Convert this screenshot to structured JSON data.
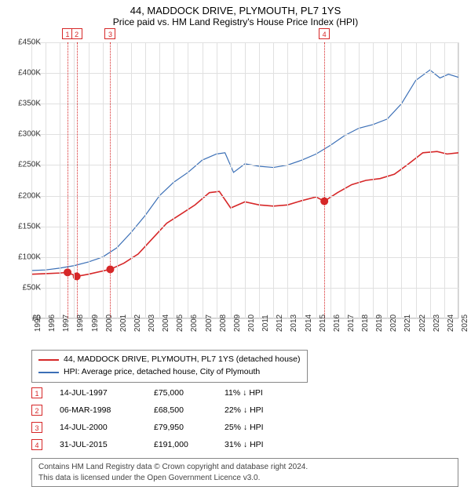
{
  "title": "44, MADDOCK DRIVE, PLYMOUTH, PL7 1YS",
  "subtitle": "Price paid vs. HM Land Registry's House Price Index (HPI)",
  "chart": {
    "type": "line",
    "background_color": "#ffffff",
    "border_color": "#cccccc",
    "grid_color": "#e0e0e0",
    "axis_font_size": 10,
    "y": {
      "min": 0,
      "max": 450000,
      "tick_step": 50000,
      "prefix": "£",
      "tick_labels": [
        "£0",
        "£50K",
        "£100K",
        "£150K",
        "£200K",
        "£250K",
        "£300K",
        "£350K",
        "£400K",
        "£450K"
      ]
    },
    "x": {
      "min": 1995,
      "max": 2025,
      "tick_step": 1,
      "labels": [
        "1995",
        "1996",
        "1997",
        "1998",
        "1999",
        "2000",
        "2001",
        "2002",
        "2003",
        "2004",
        "2005",
        "2006",
        "2007",
        "2008",
        "2009",
        "2010",
        "2011",
        "2012",
        "2013",
        "2014",
        "2015",
        "2016",
        "2017",
        "2018",
        "2019",
        "2020",
        "2021",
        "2022",
        "2023",
        "2024",
        "2025"
      ]
    },
    "series": [
      {
        "id": "sale_price",
        "label": "44, MADDOCK DRIVE, PLYMOUTH, PL7 1YS (detached house)",
        "color": "#d62728",
        "line_width": 1.6,
        "marker_size": 5,
        "marker_points": [
          {
            "x": 1997.54,
            "y": 75000
          },
          {
            "x": 1998.18,
            "y": 68500
          },
          {
            "x": 2000.54,
            "y": 79950
          },
          {
            "x": 2015.58,
            "y": 191000
          }
        ],
        "points": [
          {
            "x": 1995.0,
            "y": 72000
          },
          {
            "x": 1996.0,
            "y": 73000
          },
          {
            "x": 1997.0,
            "y": 74000
          },
          {
            "x": 1997.54,
            "y": 75000
          },
          {
            "x": 1998.18,
            "y": 68500
          },
          {
            "x": 1999.0,
            "y": 72000
          },
          {
            "x": 2000.54,
            "y": 79950
          },
          {
            "x": 2001.5,
            "y": 90000
          },
          {
            "x": 2002.5,
            "y": 105000
          },
          {
            "x": 2003.5,
            "y": 130000
          },
          {
            "x": 2004.5,
            "y": 155000
          },
          {
            "x": 2005.5,
            "y": 170000
          },
          {
            "x": 2006.5,
            "y": 185000
          },
          {
            "x": 2007.5,
            "y": 205000
          },
          {
            "x": 2008.2,
            "y": 207000
          },
          {
            "x": 2009.0,
            "y": 180000
          },
          {
            "x": 2010.0,
            "y": 190000
          },
          {
            "x": 2011.0,
            "y": 185000
          },
          {
            "x": 2012.0,
            "y": 183000
          },
          {
            "x": 2013.0,
            "y": 185000
          },
          {
            "x": 2014.0,
            "y": 192000
          },
          {
            "x": 2015.0,
            "y": 198000
          },
          {
            "x": 2015.58,
            "y": 191000
          },
          {
            "x": 2016.5,
            "y": 205000
          },
          {
            "x": 2017.5,
            "y": 218000
          },
          {
            "x": 2018.5,
            "y": 225000
          },
          {
            "x": 2019.5,
            "y": 228000
          },
          {
            "x": 2020.5,
            "y": 235000
          },
          {
            "x": 2021.5,
            "y": 252000
          },
          {
            "x": 2022.5,
            "y": 270000
          },
          {
            "x": 2023.5,
            "y": 272000
          },
          {
            "x": 2024.2,
            "y": 268000
          },
          {
            "x": 2025.0,
            "y": 270000
          }
        ]
      },
      {
        "id": "hpi",
        "label": "HPI: Average price, detached house, City of Plymouth",
        "color": "#3b6fb6",
        "line_width": 1.2,
        "points": [
          {
            "x": 1995.0,
            "y": 78000
          },
          {
            "x": 1996.0,
            "y": 79000
          },
          {
            "x": 1997.0,
            "y": 82000
          },
          {
            "x": 1998.0,
            "y": 86000
          },
          {
            "x": 1999.0,
            "y": 92000
          },
          {
            "x": 2000.0,
            "y": 100000
          },
          {
            "x": 2001.0,
            "y": 115000
          },
          {
            "x": 2002.0,
            "y": 140000
          },
          {
            "x": 2003.0,
            "y": 168000
          },
          {
            "x": 2004.0,
            "y": 200000
          },
          {
            "x": 2005.0,
            "y": 222000
          },
          {
            "x": 2006.0,
            "y": 238000
          },
          {
            "x": 2007.0,
            "y": 258000
          },
          {
            "x": 2008.0,
            "y": 268000
          },
          {
            "x": 2008.6,
            "y": 270000
          },
          {
            "x": 2009.2,
            "y": 238000
          },
          {
            "x": 2010.0,
            "y": 252000
          },
          {
            "x": 2011.0,
            "y": 248000
          },
          {
            "x": 2012.0,
            "y": 246000
          },
          {
            "x": 2013.0,
            "y": 250000
          },
          {
            "x": 2014.0,
            "y": 258000
          },
          {
            "x": 2015.0,
            "y": 268000
          },
          {
            "x": 2016.0,
            "y": 282000
          },
          {
            "x": 2017.0,
            "y": 298000
          },
          {
            "x": 2018.0,
            "y": 310000
          },
          {
            "x": 2019.0,
            "y": 316000
          },
          {
            "x": 2020.0,
            "y": 325000
          },
          {
            "x": 2021.0,
            "y": 350000
          },
          {
            "x": 2022.0,
            "y": 388000
          },
          {
            "x": 2023.0,
            "y": 405000
          },
          {
            "x": 2023.7,
            "y": 392000
          },
          {
            "x": 2024.3,
            "y": 398000
          },
          {
            "x": 2025.0,
            "y": 393000
          }
        ]
      }
    ],
    "events": [
      {
        "n": "1",
        "x": 1997.54,
        "color": "#d62728"
      },
      {
        "n": "2",
        "x": 1998.18,
        "color": "#d62728"
      },
      {
        "n": "3",
        "x": 2000.54,
        "color": "#d62728"
      },
      {
        "n": "4",
        "x": 2015.58,
        "color": "#d62728"
      }
    ]
  },
  "legend": {
    "border_color": "#888888",
    "rows": [
      {
        "color": "#d62728",
        "label": "44, MADDOCK DRIVE, PLYMOUTH, PL7 1YS (detached house)"
      },
      {
        "color": "#3b6fb6",
        "label": "HPI: Average price, detached house, City of Plymouth"
      }
    ]
  },
  "sales_table": {
    "badge_color": "#d62728",
    "rows": [
      {
        "n": "1",
        "date": "14-JUL-1997",
        "price": "£75,000",
        "delta": "11% ↓ HPI"
      },
      {
        "n": "2",
        "date": "06-MAR-1998",
        "price": "£68,500",
        "delta": "22% ↓ HPI"
      },
      {
        "n": "3",
        "date": "14-JUL-2000",
        "price": "£79,950",
        "delta": "25% ↓ HPI"
      },
      {
        "n": "4",
        "date": "31-JUL-2015",
        "price": "£191,000",
        "delta": "31% ↓ HPI"
      }
    ]
  },
  "footer": {
    "line1": "Contains HM Land Registry data © Crown copyright and database right 2024.",
    "line2": "This data is licensed under the Open Government Licence v3.0."
  }
}
